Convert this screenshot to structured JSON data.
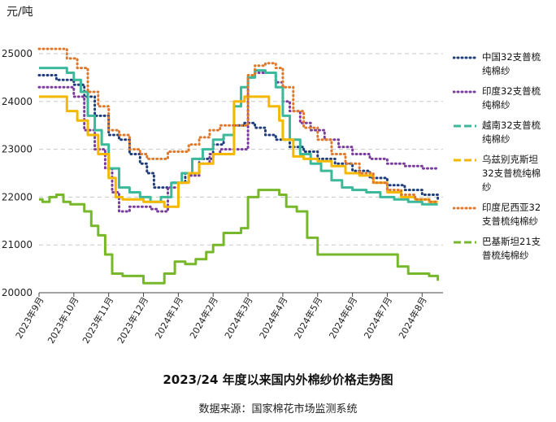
{
  "chart_data": {
    "type": "line",
    "title": "2023/24 年度以来国内外棉纱价格走势图",
    "source": "数据来源：国家棉花市场监测系统",
    "ylabel": "元/吨",
    "ylim": [
      20000,
      25000
    ],
    "yticks": [
      "20000",
      "21000",
      "22000",
      "23000",
      "24000",
      "25000"
    ],
    "grid": true,
    "legend_position": "right",
    "x_tick_labels": [
      "2023年9月",
      "2023年10月",
      "2023年11月",
      "2023年12月",
      "2024年1月",
      "2024年2月",
      "2024年3月",
      "2024年4月",
      "2024年5月",
      "2024年6月",
      "2024年7月",
      "2024年8月"
    ],
    "x_months": [
      0,
      1,
      2,
      3,
      4,
      5,
      6,
      7,
      8,
      9,
      10,
      11
    ],
    "series": [
      {
        "name": "中国32支普梳纯棉纱",
        "color": "#1f3d7a",
        "dash": "dot",
        "x": [
          0,
          0.5,
          1.0,
          1.3,
          1.6,
          2.0,
          2.3,
          2.6,
          2.9,
          3.1,
          3.3,
          3.5,
          3.8,
          4.2,
          4.6,
          5.0,
          5.3,
          5.6,
          5.9,
          6.2,
          6.5,
          6.8,
          7.2,
          7.6,
          8.0,
          8.5,
          9.0,
          9.5,
          10.0,
          10.5,
          11.0,
          11.45
        ],
        "y": [
          24550,
          24450,
          24350,
          24100,
          23700,
          23300,
          23200,
          22900,
          22700,
          22500,
          22200,
          22200,
          22300,
          22500,
          22800,
          23100,
          23300,
          23500,
          23550,
          23450,
          23300,
          23200,
          23050,
          22950,
          22800,
          22700,
          22550,
          22400,
          22250,
          22150,
          22050,
          21950
        ]
      },
      {
        "name": "印度32支普梳纯棉纱",
        "color": "#7a3c9e",
        "dash": "dot",
        "x": [
          0,
          0.5,
          1.0,
          1.3,
          1.6,
          1.9,
          2.1,
          2.3,
          2.6,
          2.9,
          3.2,
          3.4,
          3.7,
          4.0,
          4.3,
          4.6,
          4.9,
          5.2,
          5.5,
          5.8,
          6.0,
          6.2,
          6.5,
          6.8,
          7.0,
          7.2,
          7.5,
          7.8,
          8.2,
          8.6,
          9.0,
          9.5,
          10.0,
          10.5,
          11.0,
          11.45
        ],
        "y": [
          24300,
          24300,
          24100,
          23400,
          23000,
          22600,
          22100,
          21700,
          21800,
          21800,
          21750,
          21700,
          22200,
          22300,
          22450,
          22700,
          22900,
          23000,
          23000,
          23000,
          24500,
          24600,
          24600,
          24400,
          24000,
          23800,
          23550,
          23400,
          23200,
          23050,
          22900,
          22800,
          22700,
          22650,
          22600,
          22600
        ]
      },
      {
        "name": "越南32支普梳纯棉纱",
        "color": "#3cb89a",
        "dash": "solid",
        "x": [
          0,
          0.4,
          0.8,
          1.0,
          1.2,
          1.4,
          1.6,
          1.8,
          2.0,
          2.3,
          2.6,
          2.9,
          3.2,
          3.5,
          3.8,
          4.1,
          4.4,
          4.7,
          5.0,
          5.3,
          5.6,
          5.8,
          6.0,
          6.2,
          6.5,
          6.8,
          7.0,
          7.2,
          7.5,
          7.8,
          8.1,
          8.4,
          8.7,
          9.0,
          9.4,
          9.8,
          10.2,
          10.6,
          11.0,
          11.45
        ],
        "y": [
          24700,
          24700,
          24600,
          24450,
          24200,
          23700,
          23400,
          23100,
          22600,
          22200,
          22100,
          22000,
          21900,
          22000,
          22300,
          22500,
          22800,
          23000,
          23200,
          23300,
          23900,
          24300,
          24500,
          24650,
          24600,
          24300,
          23700,
          23200,
          22900,
          22700,
          22550,
          22350,
          22200,
          22150,
          22100,
          22000,
          21950,
          21900,
          21850,
          21850
        ]
      },
      {
        "name": "乌兹别克斯坦32支普梳纯棉纱",
        "color": "#f5b800",
        "dash": "solid",
        "x": [
          0,
          0.5,
          0.8,
          1.1,
          1.4,
          1.7,
          2.0,
          2.2,
          2.4,
          2.7,
          3.0,
          3.3,
          3.6,
          4.0,
          4.3,
          4.6,
          5.0,
          5.3,
          5.6,
          5.9,
          6.1,
          6.3,
          6.6,
          6.9,
          7.0,
          7.3,
          7.6,
          8.0,
          8.4,
          8.8,
          9.2,
          9.6,
          10.0,
          10.4,
          10.8,
          11.2,
          11.45
        ],
        "y": [
          24100,
          24100,
          23800,
          23600,
          23300,
          22900,
          22400,
          22000,
          21950,
          21950,
          21900,
          21900,
          21800,
          22300,
          22500,
          22700,
          22900,
          22900,
          24000,
          24100,
          24100,
          24100,
          23900,
          23600,
          23200,
          22850,
          22800,
          22750,
          22650,
          22500,
          22450,
          22300,
          22100,
          22000,
          21950,
          21900,
          21900
        ]
      },
      {
        "name": "印度尼西亚32支普梳纯棉纱",
        "color": "#e0782b",
        "dash": "dot",
        "x": [
          0,
          0.5,
          0.8,
          1.1,
          1.4,
          1.7,
          2.0,
          2.3,
          2.6,
          2.9,
          3.1,
          3.4,
          3.7,
          4.0,
          4.3,
          4.6,
          4.9,
          5.2,
          5.5,
          5.8,
          6.0,
          6.2,
          6.5,
          6.8,
          7.0,
          7.3,
          7.6,
          8.0,
          8.4,
          8.8,
          9.2,
          9.6,
          10.0,
          10.4,
          10.8,
          11.2,
          11.45
        ],
        "y": [
          25100,
          25100,
          24900,
          24700,
          24200,
          23900,
          23400,
          23300,
          23000,
          22900,
          22800,
          22800,
          22950,
          22950,
          23100,
          23250,
          23400,
          23500,
          23500,
          23500,
          24550,
          24750,
          24800,
          24700,
          24300,
          23800,
          23450,
          23200,
          22900,
          22700,
          22500,
          22300,
          22150,
          22050,
          21950,
          21900,
          21900
        ]
      },
      {
        "name": "巴基斯坦21支普梳纯棉纱",
        "color": "#76b82a",
        "dash": "solid",
        "x": [
          0,
          0.1,
          0.3,
          0.5,
          0.7,
          0.9,
          1.1,
          1.3,
          1.5,
          1.7,
          1.9,
          2.1,
          2.4,
          2.7,
          3.0,
          3.3,
          3.6,
          3.9,
          4.2,
          4.5,
          4.8,
          5.0,
          5.3,
          5.6,
          5.8,
          6.0,
          6.3,
          6.6,
          6.9,
          7.1,
          7.4,
          7.7,
          8.0,
          8.3,
          8.6,
          9.0,
          9.5,
          10.0,
          10.3,
          10.6,
          10.9,
          11.2,
          11.45
        ],
        "y": [
          21950,
          21900,
          22000,
          22050,
          21900,
          21850,
          21850,
          21700,
          21400,
          21200,
          20800,
          20400,
          20350,
          20350,
          20200,
          20200,
          20400,
          20650,
          20600,
          20700,
          20850,
          21000,
          21250,
          21250,
          21350,
          22000,
          22150,
          22150,
          22050,
          21800,
          21700,
          21150,
          20800,
          20800,
          20800,
          20800,
          20800,
          20800,
          20550,
          20400,
          20400,
          20350,
          20250
        ]
      }
    ]
  }
}
